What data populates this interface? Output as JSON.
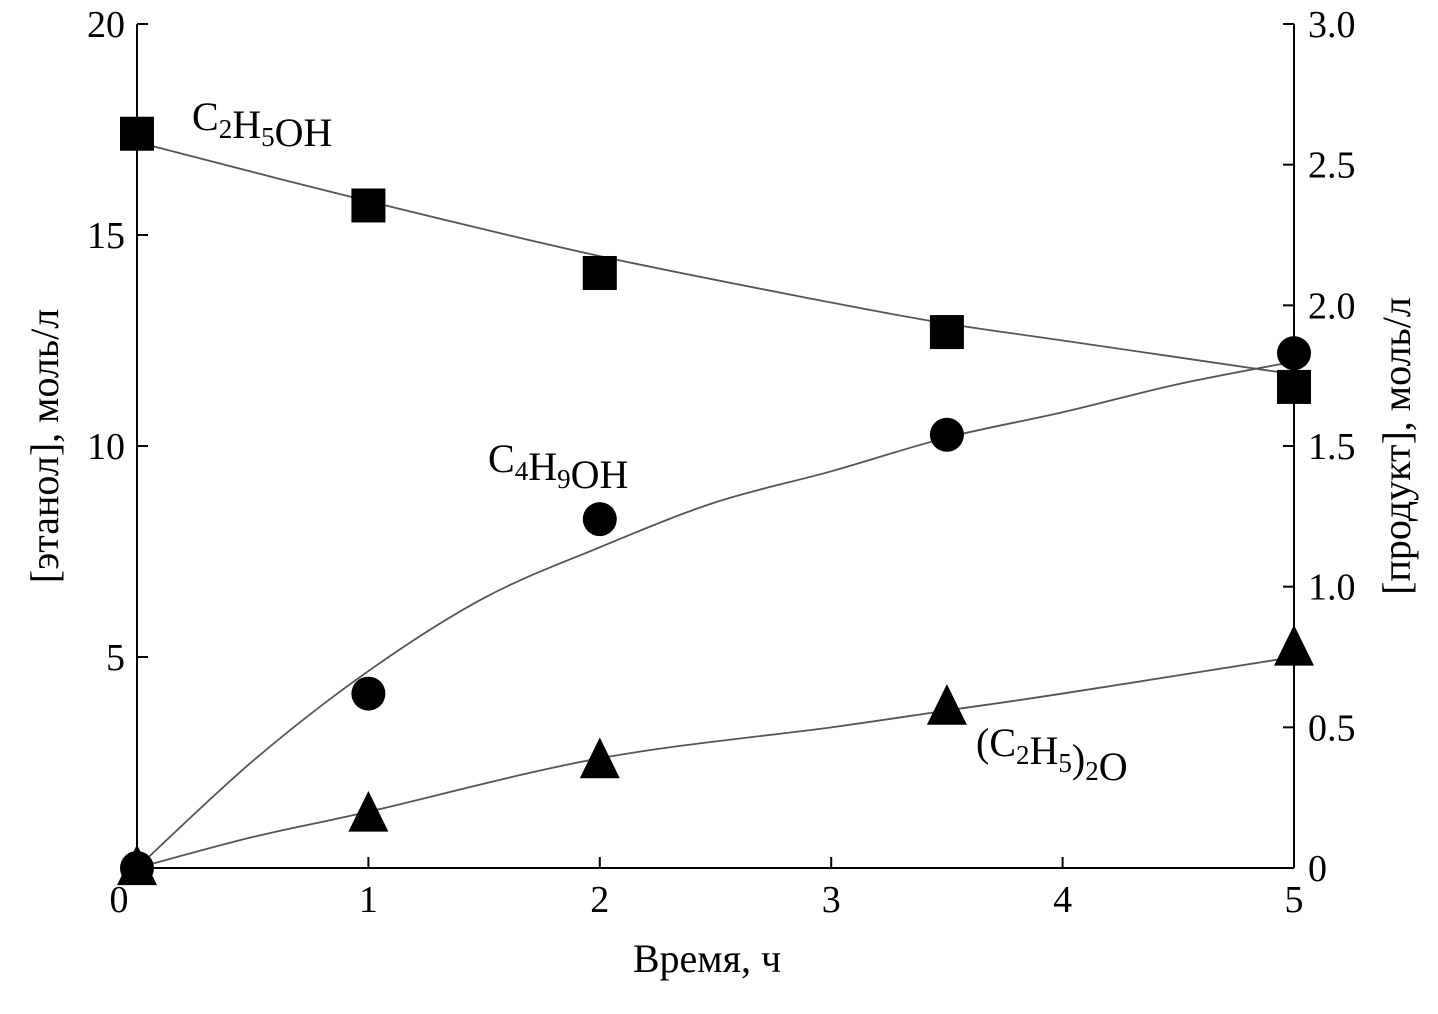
{
  "chart_data": {
    "type": "scatter",
    "xlabel": "Время, ч",
    "ylabel_left": "[этанол], моль/л",
    "ylabel_right": "[продукт], моль/л",
    "xlim": [
      0,
      5
    ],
    "ylim_left": [
      0,
      20
    ],
    "ylim_right": [
      0,
      3.0
    ],
    "x_ticks": [
      "0",
      "1",
      "2",
      "3",
      "4",
      "5"
    ],
    "y_left_ticks": [
      "5",
      "10",
      "15",
      "20"
    ],
    "y_right_ticks": [
      "0",
      "0.5",
      "1.0",
      "1.5",
      "2.0",
      "2.5",
      "3.0"
    ],
    "grid": false,
    "series": [
      {
        "name": "C2H5OH",
        "axis": "left",
        "marker": "square",
        "x": [
          0,
          1,
          2,
          3.5,
          5
        ],
        "y": [
          17.4,
          15.7,
          14.1,
          12.7,
          11.4
        ],
        "fit_curve": [
          [
            0,
            17.2
          ],
          [
            1,
            15.8
          ],
          [
            2,
            14.5
          ],
          [
            3,
            13.4
          ],
          [
            3.5,
            12.9
          ],
          [
            4,
            12.5
          ],
          [
            5,
            11.7
          ]
        ]
      },
      {
        "name": "C4H9OH",
        "axis": "right",
        "marker": "circle",
        "x": [
          0,
          1,
          2,
          3.5,
          5
        ],
        "y": [
          0,
          0.62,
          1.24,
          1.54,
          1.83
        ],
        "fit_curve": [
          [
            0,
            0
          ],
          [
            0.5,
            0.38
          ],
          [
            1,
            0.7
          ],
          [
            1.5,
            0.96
          ],
          [
            2,
            1.14
          ],
          [
            2.5,
            1.3
          ],
          [
            3,
            1.41
          ],
          [
            3.5,
            1.53
          ],
          [
            4,
            1.62
          ],
          [
            4.5,
            1.72
          ],
          [
            5,
            1.8
          ]
        ]
      },
      {
        "name": "(C2H5)2O",
        "axis": "right",
        "marker": "triangle",
        "x": [
          0,
          1,
          2,
          3.5,
          5
        ],
        "y": [
          0,
          0.19,
          0.38,
          0.57,
          0.78
        ],
        "fit_curve": [
          [
            0,
            0
          ],
          [
            0.5,
            0.11
          ],
          [
            1,
            0.2
          ],
          [
            2,
            0.39
          ],
          [
            3,
            0.5
          ],
          [
            3.5,
            0.56
          ],
          [
            4,
            0.62
          ],
          [
            5,
            0.75
          ]
        ]
      }
    ]
  }
}
